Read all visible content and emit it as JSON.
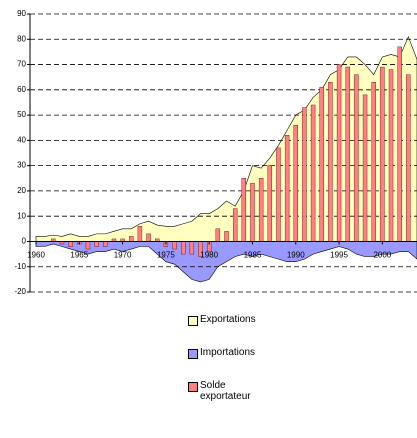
{
  "chart_data": {
    "type": "combo",
    "x": [
      1960,
      1961,
      1962,
      1963,
      1964,
      1965,
      1966,
      1967,
      1968,
      1969,
      1970,
      1971,
      1972,
      1973,
      1974,
      1975,
      1976,
      1977,
      1978,
      1979,
      1980,
      1981,
      1982,
      1983,
      1984,
      1985,
      1986,
      1987,
      1988,
      1989,
      1990,
      1991,
      1992,
      1993,
      1994,
      1995,
      1996,
      1997,
      1998,
      1999,
      2000,
      2001,
      2002,
      2003,
      2004
    ],
    "series": [
      {
        "name": "Exportations",
        "type": "area",
        "color": "#ffffc0",
        "values": [
          2,
          2,
          2.5,
          2,
          3,
          2,
          2,
          3,
          3,
          4,
          5,
          5,
          7,
          8,
          6.5,
          6,
          6,
          7,
          8,
          11,
          11,
          13,
          16,
          14,
          20,
          30,
          29,
          33,
          38,
          44,
          50,
          52,
          57,
          60,
          66,
          68,
          73,
          73,
          70,
          66,
          73,
          74,
          73,
          81,
          72
        ]
      },
      {
        "name": "Importations",
        "type": "area",
        "color": "#9999ff",
        "values": [
          -2,
          -2,
          -1,
          -2,
          -3,
          -4,
          -5,
          -4,
          -4,
          -3,
          -4,
          -3,
          -2,
          -2,
          -5,
          -8,
          -9,
          -12,
          -15,
          -16,
          -15,
          -10,
          -8,
          -6,
          -5,
          -6,
          -5,
          -6,
          -7,
          -8,
          -8,
          -7,
          -5,
          -4,
          -3,
          -2,
          -3,
          -5,
          -6,
          -6,
          -5,
          -5,
          -4,
          -4,
          -7
        ]
      },
      {
        "name": "Solde exportateur",
        "type": "bar",
        "color": "#ff8080",
        "values": [
          0,
          0,
          1,
          -1,
          -2,
          -1,
          -3,
          -2,
          -2,
          1,
          1,
          2,
          6,
          3,
          1,
          -2,
          -3,
          -5,
          -5,
          -6,
          -4,
          5,
          4,
          13,
          25,
          23,
          25,
          30,
          37,
          42,
          46,
          53,
          54,
          61,
          63,
          70,
          69,
          66,
          58,
          63,
          69,
          68,
          77,
          66,
          null
        ]
      }
    ],
    "xlim": [
      1960,
      2004
    ],
    "xticks": [
      1960,
      1965,
      1970,
      1975,
      1980,
      1985,
      1990,
      1995,
      2000
    ],
    "ylim": [
      -20,
      90
    ],
    "yticks": [
      -20,
      -10,
      0,
      10,
      20,
      30,
      40,
      50,
      60,
      70,
      80,
      90
    ],
    "grid": true
  }
}
